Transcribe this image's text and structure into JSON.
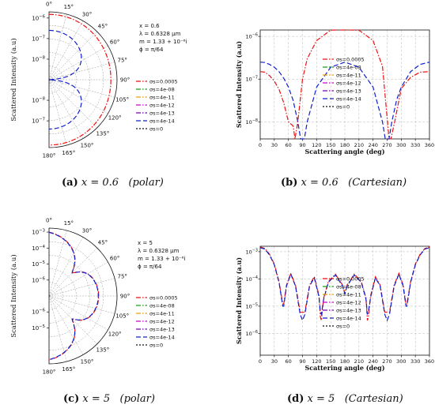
{
  "colors": {
    "red": "#ee1111",
    "green": "#16a016",
    "orange": "#f0a000",
    "magenta": "#d000d0",
    "purple": "#7a00b0",
    "blue": "#1020cc",
    "black": "#111111"
  },
  "chart_data": [
    {
      "id": "a",
      "type": "polar",
      "caption": {
        "tag": "(a)",
        "math": "x = 0.6",
        "note": "(polar)"
      },
      "ylabel": "Scattered Intensity (a.u)",
      "angle_ticks": [
        "0°",
        "15°",
        "30°",
        "45°",
        "60°",
        "75°",
        "90°",
        "105°",
        "120°",
        "135°",
        "150°",
        "165°",
        "180°"
      ],
      "radial_ticks": [
        {
          "exp": "-6",
          "pos": "upper"
        },
        {
          "exp": "-7",
          "pos": "upper"
        },
        {
          "exp": "-8",
          "pos": "upper"
        },
        {
          "exp": "-7",
          "pos": "lower"
        },
        {
          "exp": "-8",
          "pos": "lower"
        }
      ],
      "log_range": [
        -9,
        -5.7
      ],
      "params": [
        "x = 0.6",
        "λ = 0.6328 μm",
        "m = 1.33 + 10⁻⁶i",
        "ϕ = π/64"
      ],
      "legend": [
        "σs=0.0005",
        "σs=4e-08",
        "σs=4e-11",
        "σs=4e-12",
        "σs=4e-13",
        "σs=4e-14",
        "σs=0"
      ],
      "model": {
        "kind": "rayleigh",
        "series": [
          {
            "color": "red",
            "peak": 1.5e-06,
            "iso_floor": 1e-06
          },
          {
            "color": "blue",
            "peak": 2.5e-07,
            "iso_floor": 0
          }
        ]
      }
    },
    {
      "id": "b",
      "type": "line",
      "caption": {
        "tag": "(b)",
        "math": "x = 0.6",
        "note": "(Cartesian)"
      },
      "xlabel": "Scattering angle (deg)",
      "ylabel": "Scattered Intensity (a.u)",
      "xlim": [
        0,
        360
      ],
      "xticks": [
        0,
        30,
        60,
        90,
        120,
        150,
        180,
        210,
        240,
        270,
        300,
        330,
        360
      ],
      "ylim_log": [
        -8.4,
        -5.85
      ],
      "ytick_exps": [
        "-6",
        "-7",
        "-8"
      ],
      "legend": [
        "σs=0.0005",
        "σs=4e-08",
        "σs=4e-11",
        "σs=4e-12",
        "σs=4e-13",
        "σs=4e-14",
        "σs=0"
      ],
      "series": [
        {
          "name": "σs=0.0005",
          "color": "red",
          "x": [
            0,
            10,
            20,
            30,
            40,
            50,
            60,
            70,
            74,
            80,
            86,
            90,
            100,
            120,
            150,
            180,
            210,
            240,
            260,
            274,
            278,
            286,
            300,
            320,
            340,
            360
          ],
          "y": [
            1.5e-07,
            1.45e-07,
            1.2e-07,
            9e-08,
            5.8e-08,
            2.8e-08,
            1e-08,
            8e-09,
            4e-09,
            1e-08,
            4e-08,
            1e-07,
            3e-07,
            8e-07,
            1.4e-06,
            1.6e-06,
            1.4e-06,
            8e-07,
            2e-07,
            4e-09,
            4e-09,
            1e-08,
            6e-08,
            1.1e-07,
            1.45e-07,
            1.5e-07
          ]
        },
        {
          "name": "σs=0",
          "color": "blue",
          "x": [
            0,
            10,
            20,
            30,
            40,
            50,
            60,
            70,
            80,
            86,
            88,
            90,
            92,
            94,
            100,
            120,
            150,
            180,
            210,
            240,
            260,
            266,
            268,
            270,
            272,
            274,
            280,
            290,
            300,
            320,
            340,
            360
          ],
          "y": [
            2.5e-07,
            2.45e-07,
            2.2e-07,
            1.9e-07,
            1.5e-07,
            1.05e-07,
            6.5e-08,
            3.2e-08,
            1e-08,
            3.5e-09,
            3.5e-09,
            3.5e-09,
            3.5e-09,
            4e-09,
            1e-08,
            6.5e-08,
            1.9e-07,
            2.5e-07,
            1.9e-07,
            6.5e-08,
            1e-08,
            3.5e-09,
            3.5e-09,
            3.5e-09,
            3.5e-09,
            4e-09,
            1e-08,
            3.2e-08,
            6.5e-08,
            1.5e-07,
            2.2e-07,
            2.5e-07
          ]
        }
      ]
    },
    {
      "id": "c",
      "type": "polar",
      "caption": {
        "tag": "(c)",
        "math": "x = 5",
        "note": "(polar)"
      },
      "ylabel": "Scattered Intensity (a.u)",
      "angle_ticks": [
        "0°",
        "15°",
        "30°",
        "45°",
        "60°",
        "75°",
        "90°",
        "105°",
        "120°",
        "135°",
        "150°",
        "165°",
        "180°"
      ],
      "radial_ticks": [
        {
          "exp": "-3",
          "pos": "upper"
        },
        {
          "exp": "-4",
          "pos": "upper"
        },
        {
          "exp": "-5",
          "pos": "upper"
        },
        {
          "exp": "-6",
          "pos": "upper"
        },
        {
          "exp": "-5",
          "pos": "lower"
        },
        {
          "exp": "-6",
          "pos": "lower"
        }
      ],
      "log_range": [
        -7,
        -2.75
      ],
      "params": [
        "x = 5",
        "λ = 0.6328 μm",
        "m = 1.33 + 10⁻⁶i",
        "ϕ = π/64"
      ],
      "legend": [
        "σs=0.0005",
        "σs=4e-08",
        "σs=4e-11",
        "σs=4e-12",
        "σs=4e-13",
        "σs=4e-14",
        "σs=0"
      ],
      "model": {
        "kind": "lobes",
        "series": [
          {
            "color": "red",
            "scale": 1
          },
          {
            "color": "blue",
            "scale": 0.95
          }
        ]
      }
    },
    {
      "id": "d",
      "type": "line",
      "caption": {
        "tag": "(d)",
        "math": "x = 5",
        "note": "(Cartesian)"
      },
      "xlabel": "Scattering angle (deg)",
      "ylabel": "Scattered Intensity (a.u)",
      "xlim": [
        0,
        360
      ],
      "xticks": [
        0,
        30,
        60,
        90,
        120,
        150,
        180,
        210,
        240,
        270,
        300,
        330,
        360
      ],
      "ylim_log": [
        -6.8,
        -2.8
      ],
      "ytick_exps": [
        "-3",
        "-4",
        "-5",
        "-6"
      ],
      "legend": [
        "σs=0.0005",
        "σs=4e-08",
        "σs=4e-11",
        "σs=4e-12",
        "σs=4e-13",
        "σs=4e-14",
        "σs=0"
      ],
      "series": [
        {
          "name": "σs=0.0005",
          "color": "red",
          "x": [
            0,
            10,
            20,
            30,
            40,
            48,
            50,
            56,
            65,
            75,
            85,
            90,
            95,
            105,
            115,
            125,
            128,
            130,
            135,
            145,
            160,
            175,
            180,
            185,
            200,
            215,
            225,
            228,
            230,
            235,
            245,
            255,
            265,
            270,
            275,
            285,
            295,
            304,
            310,
            312,
            320,
            330,
            340,
            350,
            360
          ],
          "y": [
            0.0015,
            0.0013,
            0.0008,
            0.00035,
            8e-05,
            1.2e-05,
            1.2e-05,
            6e-05,
            0.00016,
            6e-05,
            6e-06,
            6e-06,
            6e-06,
            6e-05,
            0.00012,
            2.5e-05,
            4e-06,
            3e-06,
            2e-05,
            8e-05,
            0.00015,
            6e-05,
            3e-05,
            6e-05,
            0.00015,
            8e-05,
            2e-05,
            3e-06,
            4e-06,
            2.5e-05,
            0.00012,
            6e-05,
            6e-06,
            6e-06,
            6e-06,
            6e-05,
            0.00016,
            6e-05,
            1.2e-05,
            1.2e-05,
            8e-05,
            0.00035,
            0.0008,
            0.0013,
            0.0015
          ]
        },
        {
          "name": "σs=0",
          "color": "blue",
          "x": [
            0,
            10,
            20,
            30,
            40,
            48,
            50,
            56,
            65,
            75,
            85,
            90,
            95,
            105,
            115,
            125,
            128,
            130,
            135,
            145,
            160,
            175,
            180,
            185,
            200,
            215,
            225,
            228,
            230,
            235,
            245,
            255,
            265,
            270,
            275,
            285,
            295,
            304,
            310,
            312,
            320,
            330,
            340,
            350,
            360
          ],
          "y": [
            0.0014,
            0.00125,
            0.00075,
            0.00033,
            7.5e-05,
            1e-05,
            1e-05,
            5.5e-05,
            0.00015,
            5.5e-05,
            5e-06,
            3e-06,
            5e-06,
            5.5e-05,
            0.00011,
            2.2e-05,
            6e-06,
            5e-06,
            1.8e-05,
            7.5e-05,
            0.00014,
            5.5e-05,
            2.8e-05,
            5.5e-05,
            0.00014,
            7.5e-05,
            1.8e-05,
            5e-06,
            6e-06,
            2.2e-05,
            0.00011,
            5.5e-05,
            5e-06,
            3e-06,
            5e-06,
            5.5e-05,
            0.00015,
            5.5e-05,
            1e-05,
            1e-05,
            7.5e-05,
            0.00033,
            0.00075,
            0.00125,
            0.0014
          ]
        }
      ]
    }
  ]
}
